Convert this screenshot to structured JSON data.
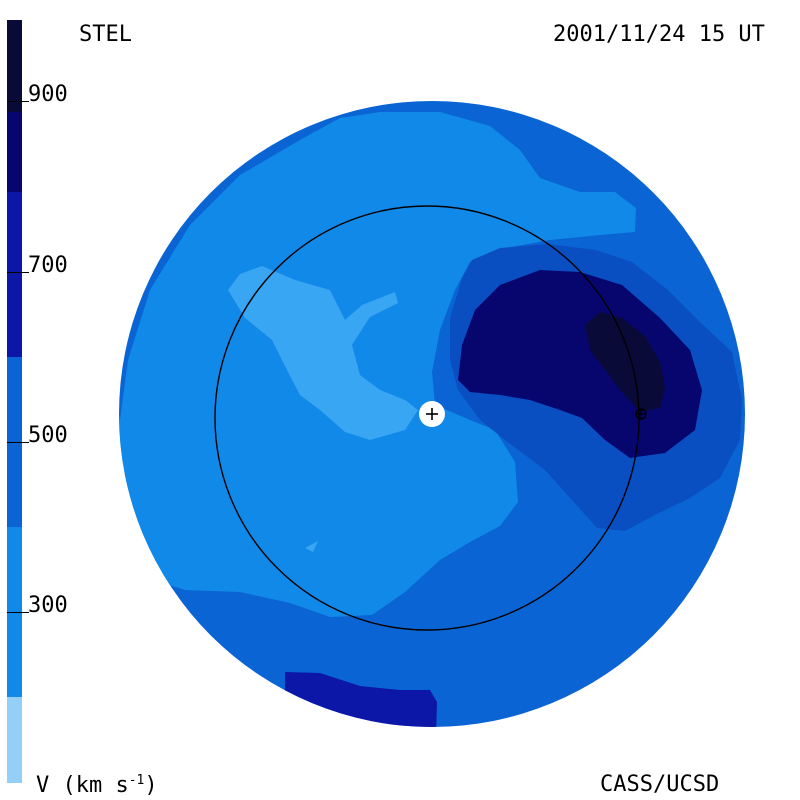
{
  "header": {
    "observatory": "STEL",
    "timestamp": "2001/11/24 15 UT"
  },
  "footer": {
    "units_label": "V (km s",
    "units_exponent": "-1",
    "units_close": ")",
    "credit": "CASS/UCSD"
  },
  "colorbar": {
    "ticks": [
      "900",
      "700",
      "500",
      "300"
    ],
    "bands": [
      "#0a0a38",
      "#06066e",
      "#0c17a8",
      "#0a4fc2",
      "#0a64d4",
      "#1189e8",
      "#38a6f2",
      "#93cff6"
    ]
  },
  "map": {
    "markers": [
      "sun-marker",
      "earth-marker"
    ]
  }
}
